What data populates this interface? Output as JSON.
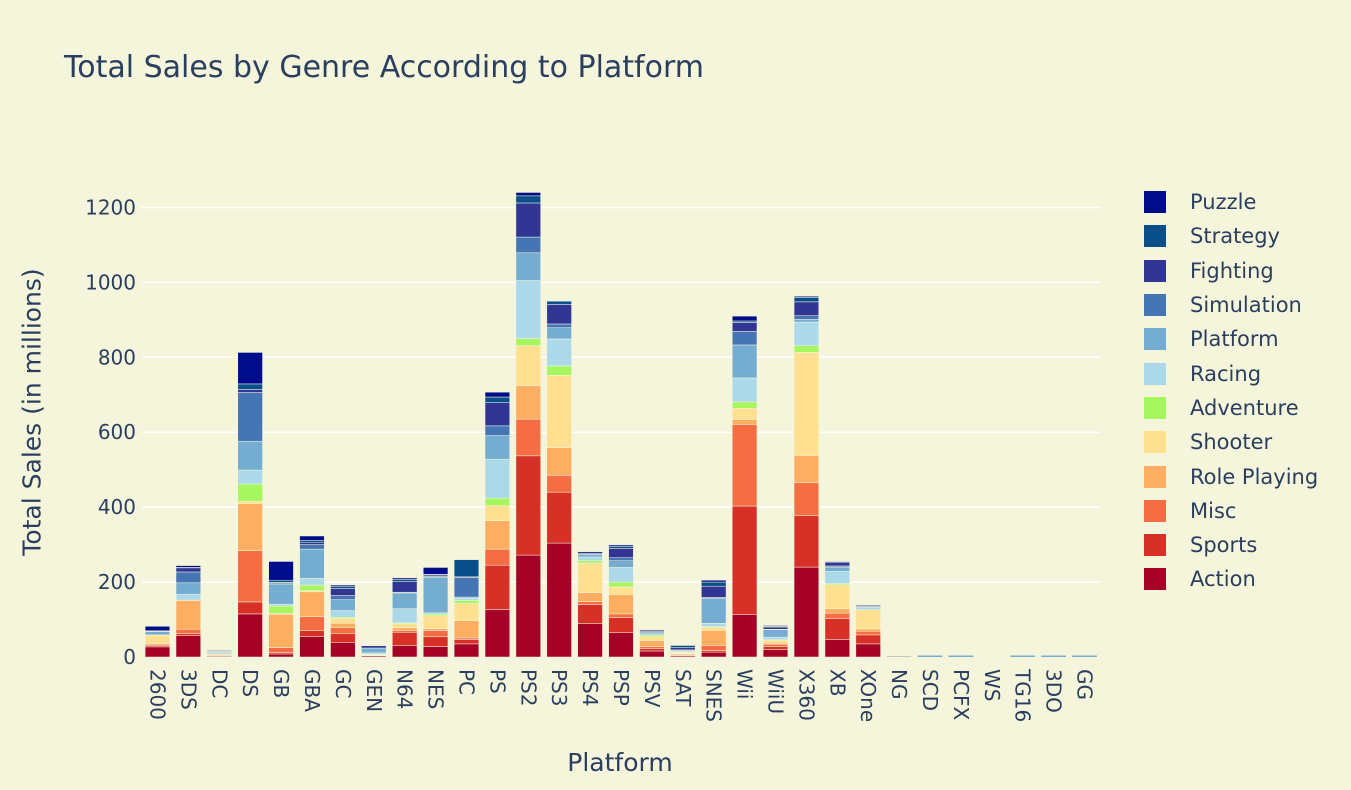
{
  "chart_data": {
    "type": "bar",
    "stacked": true,
    "title": "Total Sales by Genre According to Platform",
    "xlabel": "Platform",
    "ylabel": "Total Sales (in millions)",
    "ylim": [
      0,
      1300
    ],
    "yticks": [
      0,
      200,
      400,
      600,
      800,
      1000,
      1200
    ],
    "grid": true,
    "legend_position": "right",
    "categories": [
      "2600",
      "3DS",
      "DC",
      "DS",
      "GB",
      "GBA",
      "GC",
      "GEN",
      "N64",
      "NES",
      "PC",
      "PS",
      "PS2",
      "PS3",
      "PS4",
      "PSP",
      "PSV",
      "SAT",
      "SNES",
      "Wii",
      "WiiU",
      "X360",
      "XB",
      "XOne",
      "NG",
      "SCD",
      "PCFX",
      "WS",
      "TG16",
      "3DO",
      "GG"
    ],
    "series": [
      {
        "name": "Action",
        "color": "#a50026",
        "values": [
          27,
          57,
          2,
          115,
          8,
          55,
          38,
          3,
          30,
          28,
          35,
          127,
          272,
          304,
          89,
          65,
          16,
          3,
          13,
          113,
          20,
          240,
          47,
          35,
          0,
          0,
          0,
          0,
          0,
          0,
          0
        ]
      },
      {
        "name": "Sports",
        "color": "#d73027",
        "values": [
          3,
          6,
          1,
          32,
          4,
          16,
          24,
          1,
          36,
          26,
          12,
          118,
          265,
          136,
          51,
          40,
          6,
          2,
          4,
          290,
          8,
          138,
          56,
          24,
          0,
          0,
          0,
          0,
          0,
          0,
          0
        ]
      },
      {
        "name": "Misc",
        "color": "#f46d43",
        "values": [
          4,
          11,
          1,
          137,
          13,
          37,
          16,
          1,
          5,
          17,
          4,
          43,
          98,
          45,
          8,
          10,
          6,
          1,
          14,
          218,
          6,
          88,
          14,
          10,
          0,
          0,
          0,
          0,
          0,
          0,
          0
        ]
      },
      {
        "name": "Role Playing",
        "color": "#fdae61",
        "values": [
          2,
          77,
          3,
          125,
          89,
          66,
          12,
          1,
          7,
          5,
          46,
          76,
          89,
          74,
          24,
          52,
          16,
          3,
          40,
          13,
          3,
          72,
          12,
          6,
          0,
          0,
          0,
          0,
          0,
          0,
          0
        ]
      },
      {
        "name": "Shooter",
        "color": "#fee090",
        "values": [
          22,
          0,
          1,
          7,
          2,
          3,
          13,
          1,
          11,
          34,
          46,
          40,
          107,
          193,
          79,
          20,
          10,
          2,
          9,
          30,
          8,
          275,
          64,
          51,
          0,
          0,
          0,
          0,
          0,
          0,
          0
        ]
      },
      {
        "name": "Adventure",
        "color": "#a6f75f",
        "values": [
          0,
          1,
          0,
          46,
          20,
          15,
          3,
          0,
          2,
          4,
          8,
          20,
          19,
          25,
          6,
          13,
          4,
          2,
          1,
          17,
          1,
          18,
          3,
          0,
          0,
          0,
          0,
          0,
          0,
          0,
          0
        ]
      },
      {
        "name": "Racing",
        "color": "#abd9e9",
        "values": [
          1,
          15,
          4,
          37,
          5,
          18,
          18,
          4,
          38,
          4,
          6,
          104,
          155,
          72,
          10,
          39,
          4,
          3,
          9,
          64,
          7,
          63,
          33,
          7,
          0,
          0,
          0,
          0,
          0,
          0,
          0
        ]
      },
      {
        "name": "Platform",
        "color": "#74add1",
        "values": [
          9,
          31,
          3,
          77,
          54,
          78,
          29,
          13,
          42,
          95,
          3,
          63,
          74,
          30,
          7,
          18,
          3,
          1,
          67,
          88,
          20,
          7,
          11,
          0,
          0,
          0,
          0,
          0,
          0,
          0,
          0
        ]
      },
      {
        "name": "Simulation",
        "color": "#4575b4",
        "values": [
          1,
          29,
          1,
          130,
          3,
          12,
          11,
          0,
          2,
          2,
          52,
          26,
          42,
          10,
          2,
          8,
          3,
          2,
          2,
          36,
          1,
          10,
          3,
          2,
          0,
          0,
          0,
          0,
          0,
          0,
          0
        ]
      },
      {
        "name": "Fighting",
        "color": "#313695",
        "values": [
          1,
          11,
          2,
          8,
          1,
          5,
          19,
          6,
          29,
          4,
          2,
          62,
          91,
          52,
          5,
          25,
          4,
          6,
          30,
          24,
          6,
          37,
          10,
          3,
          2,
          0,
          0,
          0,
          0,
          0,
          0
        ]
      },
      {
        "name": "Strategy",
        "color": "#0a4f8a",
        "values": [
          0,
          1,
          0,
          15,
          6,
          6,
          5,
          0,
          5,
          2,
          46,
          15,
          19,
          9,
          1,
          5,
          1,
          6,
          11,
          4,
          2,
          12,
          2,
          1,
          0,
          0,
          0,
          1,
          0,
          0,
          0
        ]
      },
      {
        "name": "Puzzle",
        "color": "#000d8a",
        "values": [
          12,
          5,
          0,
          84,
          50,
          12,
          4,
          0,
          4,
          18,
          1,
          13,
          9,
          1,
          0,
          4,
          1,
          1,
          5,
          13,
          2,
          3,
          1,
          0,
          0,
          0,
          0,
          0,
          0,
          0,
          0
        ]
      }
    ]
  },
  "legend_items": [
    "Puzzle",
    "Strategy",
    "Fighting",
    "Simulation",
    "Platform",
    "Racing",
    "Adventure",
    "Shooter",
    "Role Playing",
    "Misc",
    "Sports",
    "Action"
  ]
}
